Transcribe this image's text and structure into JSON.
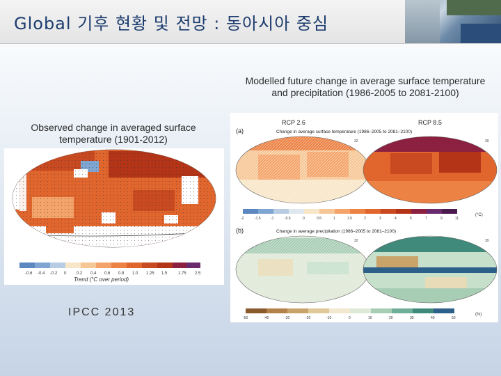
{
  "header": {
    "title": "Global 기후 현황 및 전망 : 동아시아 중심"
  },
  "observed": {
    "caption": "Observed change in averaged surface temperature (1901-2012)",
    "colorbar_ticks": [
      "-0.6",
      "-0.4",
      "-0.2",
      "0",
      "0.2",
      "0.4",
      "0.6",
      "0.8",
      "1.0",
      "1.25",
      "1.5",
      "1.75",
      "2.5"
    ],
    "colorbar_label": "Trend (°C over period)"
  },
  "projected": {
    "caption": "Modelled future change in average surface temperature and precipitation (1986-2005 to 2081-2100)",
    "scenario_low": "RCP 2.6",
    "scenario_high": "RCP 8.5",
    "panel_a": {
      "letter": "(a)",
      "title": "Change in average surface temperature (1986–2005 to 2081–2100)",
      "model_count_low": "32",
      "model_count_high": "39",
      "ticks": [
        "-2",
        "-1.5",
        "-1",
        "-0.5",
        "0",
        "0.5",
        "1",
        "1.5",
        "2",
        "3",
        "4",
        "5",
        "7",
        "9",
        "11"
      ],
      "unit": "(°C)"
    },
    "panel_b": {
      "letter": "(b)",
      "title": "Change in average precipitation (1986–2005 to 2081–2100)",
      "model_count_low": "32",
      "model_count_high": "39",
      "ticks": [
        "-50",
        "-40",
        "-30",
        "-20",
        "-10",
        "0",
        "10",
        "20",
        "30",
        "40",
        "50"
      ],
      "unit": "(%)"
    }
  },
  "source": "IPCC 2013",
  "colors": {
    "title": "#1c3c6e",
    "warm_dark": "#b43418",
    "warm": "#e1662e",
    "warm_light": "#f4a46a",
    "cool": "#7fa6d2",
    "wet": "#3f8a7a",
    "dry": "#c9a46a"
  }
}
